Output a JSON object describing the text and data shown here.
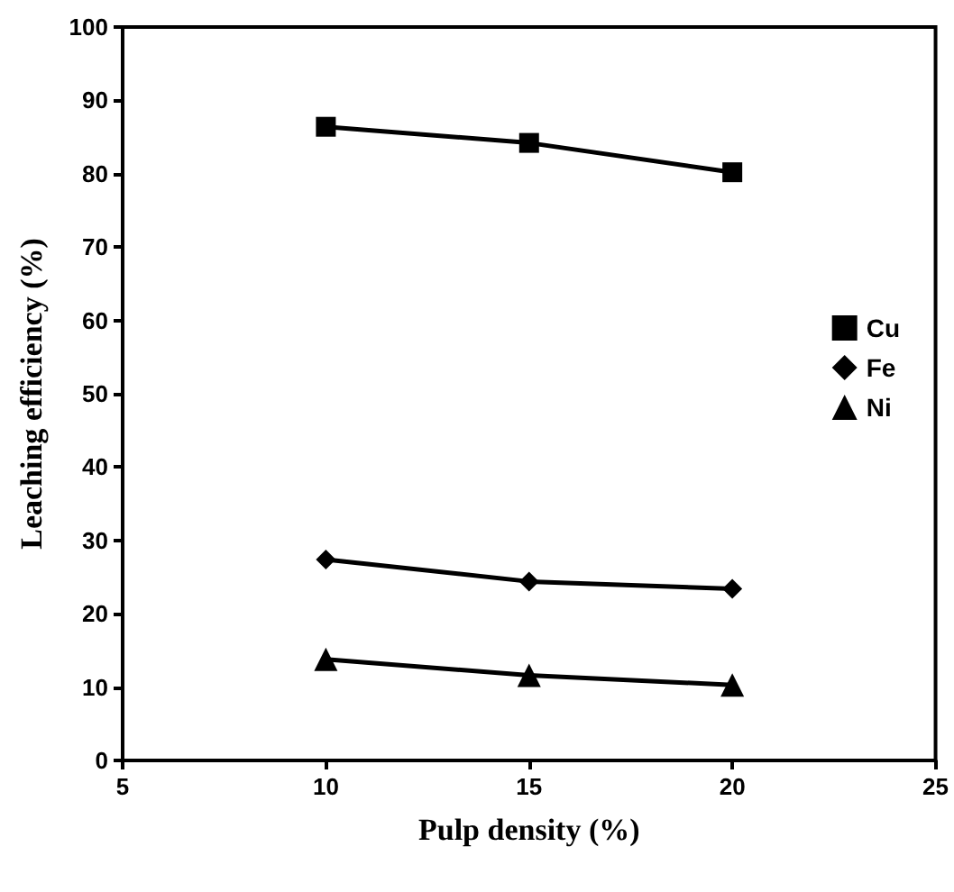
{
  "chart_data": {
    "type": "line",
    "xlabel": "Pulp density (%)",
    "ylabel": "Leaching efficiency (%)",
    "x": [
      10,
      15,
      20
    ],
    "series": [
      {
        "name": "Cu",
        "color": "#000000",
        "marker": "square",
        "values": [
          86.4,
          84.2,
          80.2
        ]
      },
      {
        "name": "Fe",
        "color": "#000000",
        "marker": "diamond",
        "values": [
          27.4,
          24.4,
          23.4
        ]
      },
      {
        "name": "Ni",
        "color": "#000000",
        "marker": "triangle",
        "values": [
          13.8,
          11.6,
          10.3
        ]
      }
    ],
    "xlim": [
      5,
      25
    ],
    "xticks": [
      5,
      10,
      15,
      20,
      25
    ],
    "ylim": [
      0,
      100
    ],
    "yticks": [
      0,
      10,
      20,
      30,
      40,
      50,
      60,
      70,
      80,
      90,
      100
    ],
    "grid": false,
    "legend": "right",
    "line_style": "solid"
  }
}
